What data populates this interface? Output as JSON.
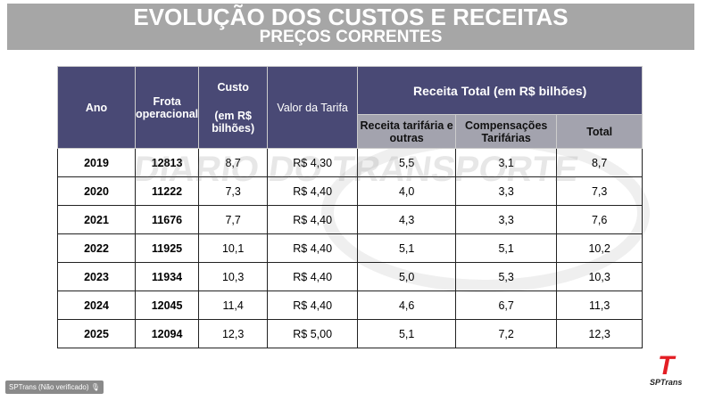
{
  "title": "EVOLUÇÃO DOS CUSTOS E RECEITAS",
  "subtitle": "PREÇOS CORRENTES",
  "headers": {
    "ano": "Ano",
    "frota": "Frota operacional",
    "custo": "Custo",
    "custo_unit": "(em R$ bilhões)",
    "tarifa": "Valor da Tarifa",
    "receita_total": "Receita Total  (em R$ bilhões)",
    "receita_tarifaria": "Receita tarifária e outras",
    "compensacoes": "Compensações Tarifárias",
    "total": "Total"
  },
  "rows": [
    {
      "ano": "2019",
      "frota": "12813",
      "custo": "8,7",
      "tarifa": "R$ 4,30",
      "receita": "5,5",
      "comp": "3,1",
      "total": "8,7"
    },
    {
      "ano": "2020",
      "frota": "11222",
      "custo": "7,3",
      "tarifa": "R$ 4,40",
      "receita": "4,0",
      "comp": "3,3",
      "total": "7,3"
    },
    {
      "ano": "2021",
      "frota": "11676",
      "custo": "7,7",
      "tarifa": "R$ 4,40",
      "receita": "4,3",
      "comp": "3,3",
      "total": "7,6"
    },
    {
      "ano": "2022",
      "frota": "11925",
      "custo": "10,1",
      "tarifa": "R$ 4,40",
      "receita": "5,1",
      "comp": "5,1",
      "total": "10,2"
    },
    {
      "ano": "2023",
      "frota": "11934",
      "custo": "10,3",
      "tarifa": "R$ 4,40",
      "receita": "5,0",
      "comp": "5,3",
      "total": "10,3"
    },
    {
      "ano": "2024",
      "frota": "12045",
      "custo": "11,4",
      "tarifa": "R$ 4,40",
      "receita": "4,6",
      "comp": "6,7",
      "total": "11,3"
    },
    {
      "ano": "2025",
      "frota": "12094",
      "custo": "12,3",
      "tarifa": "R$ 5,00",
      "receita": "5,1",
      "comp": "7,2",
      "total": "12,3"
    }
  ],
  "watermark": "DIARIO DO TRANSPORTE",
  "speaker_badge": "SPTrans (Não verificado)",
  "logo_text": "SPTrans",
  "colors": {
    "header": "#494975",
    "subheader": "#a3a3ae",
    "band": "#a6a6a6",
    "logo": "#e31e24"
  }
}
